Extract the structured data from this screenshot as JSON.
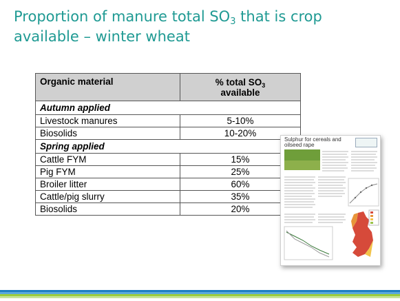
{
  "title": {
    "line1": "Proportion of manure total SO",
    "sub": "3",
    "line1_end": " that is crop",
    "line2": "available – winter wheat"
  },
  "table": {
    "header_material": "Organic material",
    "header_pct": "% total SO",
    "header_pct_sub": "3",
    "header_pct_2": "available",
    "sections": [
      {
        "label": "Autumn applied",
        "rows": [
          {
            "material": "Livestock manures",
            "value": "5-10%"
          },
          {
            "material": "Biosolids",
            "value": "10-20%"
          }
        ]
      },
      {
        "label": "Spring applied",
        "rows": [
          {
            "material": "Cattle FYM",
            "value": "15%"
          },
          {
            "material": "Pig FYM",
            "value": "25%"
          },
          {
            "material": "Broiler litter",
            "value": "60%"
          },
          {
            "material": "Cattle/pig slurry",
            "value": "35%"
          },
          {
            "material": "Biosolids",
            "value": "20%"
          }
        ]
      }
    ]
  },
  "thumbnail": {
    "title": "Sulphur for cereals and oilseed rape"
  },
  "colors": {
    "title": "#1f9a93",
    "header_bg": "#d0d0d0",
    "stripes": [
      "#1f7fc2",
      "#5aa9de",
      "#9ccc3c",
      "#c7e39a"
    ]
  }
}
